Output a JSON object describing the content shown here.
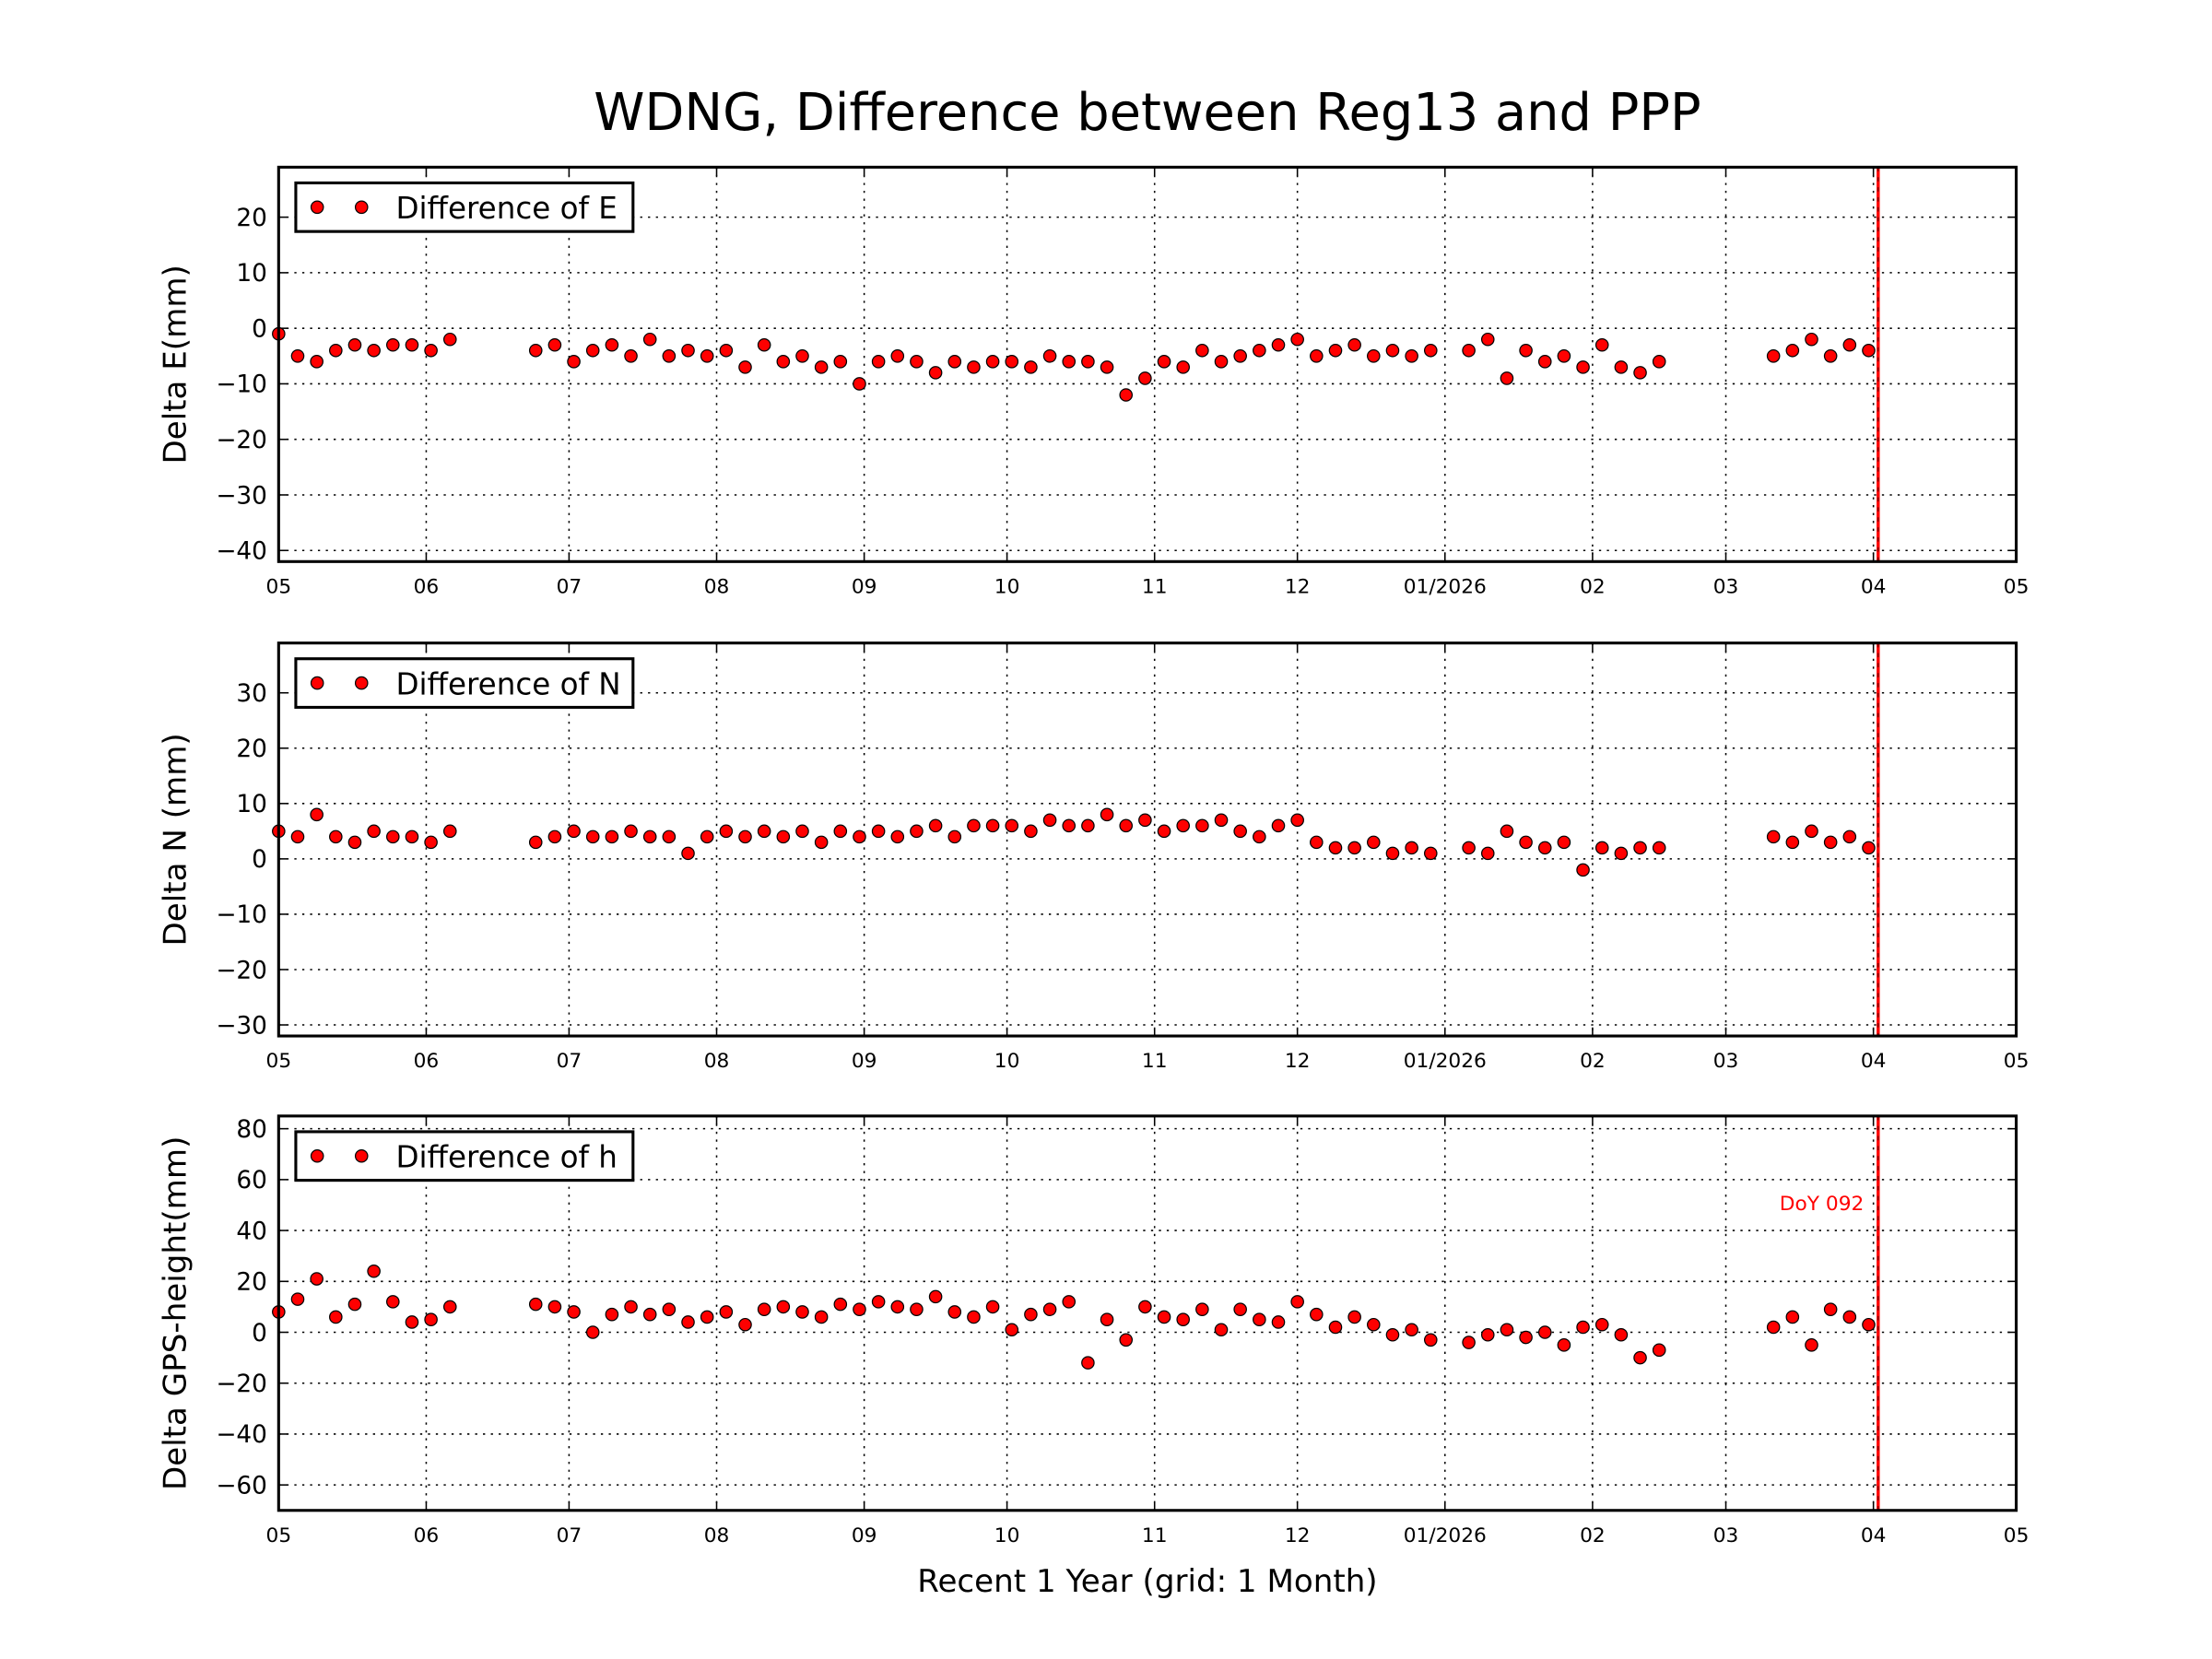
{
  "chart_data": [
    {
      "type": "scatter",
      "title": "WDNG, Difference between Reg13 and PPP",
      "ylabel": "Delta E(mm)",
      "x": [
        0,
        4,
        8,
        12,
        16,
        20,
        24,
        28,
        32,
        36,
        54,
        58,
        62,
        66,
        70,
        74,
        78,
        82,
        86,
        90,
        94,
        98,
        102,
        106,
        110,
        114,
        118,
        122,
        126,
        130,
        134,
        138,
        142,
        146,
        150,
        154,
        158,
        162,
        166,
        170,
        174,
        178,
        182,
        186,
        190,
        194,
        198,
        202,
        206,
        210,
        214,
        218,
        222,
        226,
        230,
        234,
        238,
        242,
        250,
        254,
        258,
        262,
        266,
        270,
        274,
        278,
        282,
        286,
        290,
        314,
        318,
        322,
        326,
        330,
        334
      ],
      "xlim": [
        0,
        365
      ],
      "xticks": [
        {
          "value": 0,
          "label": "05"
        },
        {
          "value": 31,
          "label": "06"
        },
        {
          "value": 61,
          "label": "07"
        },
        {
          "value": 92,
          "label": "08"
        },
        {
          "value": 123,
          "label": "09"
        },
        {
          "value": 153,
          "label": "10"
        },
        {
          "value": 184,
          "label": "11"
        },
        {
          "value": 214,
          "label": "12"
        },
        {
          "value": 245,
          "label": "01/2026"
        },
        {
          "value": 276,
          "label": "02"
        },
        {
          "value": 304,
          "label": "03"
        },
        {
          "value": 335,
          "label": "04"
        },
        {
          "value": 365,
          "label": "05"
        }
      ],
      "ylim": [
        -42,
        29
      ],
      "yticks": [
        {
          "value": -40,
          "label": "−40"
        },
        {
          "value": -30,
          "label": "−30"
        },
        {
          "value": -20,
          "label": "−20"
        },
        {
          "value": -10,
          "label": "−10"
        },
        0,
        10,
        20
      ],
      "grid": true,
      "legend": "upper left",
      "vline": 336,
      "vline_color": "#ff0000",
      "series": [
        {
          "name": "Difference of E",
          "color": "#ff0000",
          "values": [
            -1,
            -5,
            -6,
            -4,
            -3,
            -4,
            -3,
            -3,
            -4,
            -2,
            -4,
            -3,
            -6,
            -4,
            -3,
            -5,
            -2,
            -5,
            -4,
            -5,
            -4,
            -7,
            -3,
            -6,
            -5,
            -7,
            -6,
            -10,
            -6,
            -5,
            -6,
            -8,
            -6,
            -7,
            -6,
            -6,
            -7,
            -5,
            -6,
            -6,
            -7,
            -12,
            -9,
            -6,
            -7,
            -4,
            -6,
            -5,
            -4,
            -3,
            -2,
            -5,
            -4,
            -3,
            -5,
            -4,
            -5,
            -4,
            -4,
            -2,
            -9,
            -4,
            -6,
            -5,
            -7,
            -3,
            -7,
            -8,
            -6,
            -5,
            -4,
            -2,
            -5,
            -3,
            -4
          ]
        }
      ]
    },
    {
      "type": "scatter",
      "ylabel": "Delta N (mm)",
      "x": [
        0,
        4,
        8,
        12,
        16,
        20,
        24,
        28,
        32,
        36,
        54,
        58,
        62,
        66,
        70,
        74,
        78,
        82,
        86,
        90,
        94,
        98,
        102,
        106,
        110,
        114,
        118,
        122,
        126,
        130,
        134,
        138,
        142,
        146,
        150,
        154,
        158,
        162,
        166,
        170,
        174,
        178,
        182,
        186,
        190,
        194,
        198,
        202,
        206,
        210,
        214,
        218,
        222,
        226,
        230,
        234,
        238,
        242,
        250,
        254,
        258,
        262,
        266,
        270,
        274,
        278,
        282,
        286,
        290,
        314,
        318,
        322,
        326,
        330,
        334
      ],
      "xlim": [
        0,
        365
      ],
      "xticks": [
        {
          "value": 0,
          "label": "05"
        },
        {
          "value": 31,
          "label": "06"
        },
        {
          "value": 61,
          "label": "07"
        },
        {
          "value": 92,
          "label": "08"
        },
        {
          "value": 123,
          "label": "09"
        },
        {
          "value": 153,
          "label": "10"
        },
        {
          "value": 184,
          "label": "11"
        },
        {
          "value": 214,
          "label": "12"
        },
        {
          "value": 245,
          "label": "01/2026"
        },
        {
          "value": 276,
          "label": "02"
        },
        {
          "value": 304,
          "label": "03"
        },
        {
          "value": 335,
          "label": "04"
        },
        {
          "value": 365,
          "label": "05"
        }
      ],
      "ylim": [
        -32,
        39
      ],
      "yticks": [
        {
          "value": -30,
          "label": "−30"
        },
        {
          "value": -20,
          "label": "−20"
        },
        {
          "value": -10,
          "label": "−10"
        },
        0,
        10,
        20,
        30
      ],
      "grid": true,
      "legend": "upper left",
      "vline": 336,
      "vline_color": "#ff0000",
      "series": [
        {
          "name": "Difference of N",
          "color": "#ff0000",
          "values": [
            5,
            4,
            8,
            4,
            3,
            5,
            4,
            4,
            3,
            5,
            3,
            4,
            5,
            4,
            4,
            5,
            4,
            4,
            1,
            4,
            5,
            4,
            5,
            4,
            5,
            3,
            5,
            4,
            5,
            4,
            5,
            6,
            4,
            6,
            6,
            6,
            5,
            7,
            6,
            6,
            8,
            6,
            7,
            5,
            6,
            6,
            7,
            5,
            4,
            6,
            7,
            3,
            2,
            2,
            3,
            1,
            2,
            1,
            2,
            1,
            5,
            3,
            2,
            3,
            -2,
            2,
            1,
            2,
            2,
            4,
            3,
            5,
            3,
            4,
            2
          ]
        }
      ]
    },
    {
      "type": "scatter",
      "ylabel": "Delta GPS-height(mm)",
      "xlabel": "Recent 1 Year (grid: 1 Month)",
      "x": [
        0,
        4,
        8,
        12,
        16,
        20,
        24,
        28,
        32,
        36,
        54,
        58,
        62,
        66,
        70,
        74,
        78,
        82,
        86,
        90,
        94,
        98,
        102,
        106,
        110,
        114,
        118,
        122,
        126,
        130,
        134,
        138,
        142,
        146,
        150,
        154,
        158,
        162,
        166,
        170,
        174,
        178,
        182,
        186,
        190,
        194,
        198,
        202,
        206,
        210,
        214,
        218,
        222,
        226,
        230,
        234,
        238,
        242,
        250,
        254,
        258,
        262,
        266,
        270,
        274,
        278,
        282,
        286,
        290,
        314,
        318,
        322,
        326,
        330,
        334
      ],
      "xlim": [
        0,
        365
      ],
      "xticks": [
        {
          "value": 0,
          "label": "05"
        },
        {
          "value": 31,
          "label": "06"
        },
        {
          "value": 61,
          "label": "07"
        },
        {
          "value": 92,
          "label": "08"
        },
        {
          "value": 123,
          "label": "09"
        },
        {
          "value": 153,
          "label": "10"
        },
        {
          "value": 184,
          "label": "11"
        },
        {
          "value": 214,
          "label": "12"
        },
        {
          "value": 245,
          "label": "01/2026"
        },
        {
          "value": 276,
          "label": "02"
        },
        {
          "value": 304,
          "label": "03"
        },
        {
          "value": 335,
          "label": "04"
        },
        {
          "value": 365,
          "label": "05"
        }
      ],
      "ylim": [
        -70,
        85
      ],
      "yticks": [
        {
          "value": -60,
          "label": "−60"
        },
        {
          "value": -40,
          "label": "−40"
        },
        {
          "value": -20,
          "label": "−20"
        },
        0,
        20,
        40,
        60,
        80
      ],
      "grid": true,
      "legend": "upper left",
      "vline": 336,
      "vline_color": "#ff0000",
      "annotation": "DoY 092",
      "series": [
        {
          "name": "Difference of h",
          "color": "#ff0000",
          "values": [
            8,
            13,
            21,
            6,
            11,
            24,
            12,
            4,
            5,
            10,
            11,
            10,
            8,
            0,
            7,
            10,
            7,
            9,
            4,
            6,
            8,
            3,
            9,
            10,
            8,
            6,
            11,
            9,
            12,
            10,
            9,
            14,
            8,
            6,
            10,
            1,
            7,
            9,
            12,
            -12,
            5,
            -3,
            10,
            6,
            5,
            9,
            1,
            9,
            5,
            4,
            12,
            7,
            2,
            6,
            3,
            -1,
            1,
            -3,
            -4,
            -1,
            1,
            -2,
            0,
            -5,
            2,
            3,
            -1,
            -10,
            -7,
            2,
            6,
            -5,
            9,
            6,
            3
          ]
        }
      ]
    }
  ]
}
